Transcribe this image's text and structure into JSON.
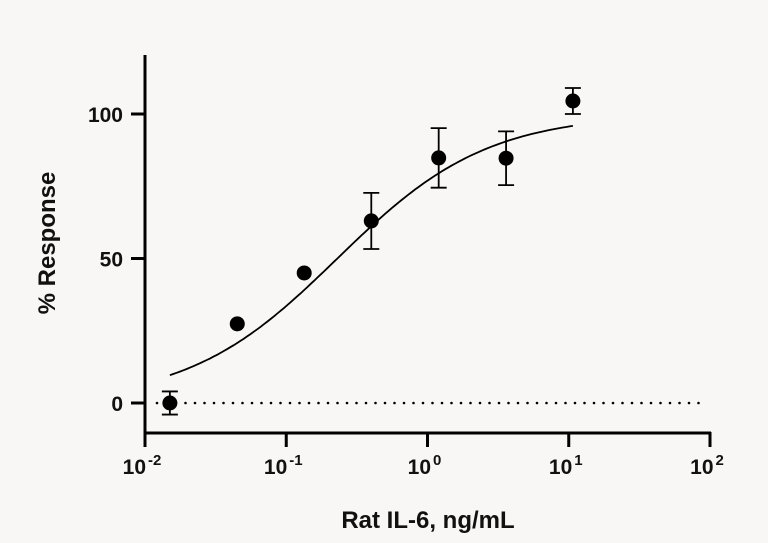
{
  "chart_data": {
    "type": "scatter",
    "title": "",
    "xlabel": "Rat IL-6, ng/mL",
    "ylabel": "% Response",
    "x_scale": "log",
    "xlim": [
      0.01,
      100
    ],
    "ylim": [
      -10,
      120
    ],
    "x_ticks": [
      {
        "base": "10",
        "exp": "-2",
        "value": 0.01
      },
      {
        "base": "10",
        "exp": "-1",
        "value": 0.1
      },
      {
        "base": "10",
        "exp": "0",
        "value": 1
      },
      {
        "base": "10",
        "exp": "1",
        "value": 10
      },
      {
        "base": "10",
        "exp": "2",
        "value": 100
      }
    ],
    "y_ticks": [
      {
        "label": "0",
        "value": 0
      },
      {
        "label": "50",
        "value": 50
      },
      {
        "label": "100",
        "value": 100
      }
    ],
    "grid": false,
    "baseline": {
      "y": 0,
      "style": "dotted"
    },
    "points": [
      {
        "x": 0.015,
        "y": 0,
        "err": 4
      },
      {
        "x": 0.045,
        "y": 27.4,
        "err": 0
      },
      {
        "x": 0.134,
        "y": 45,
        "err": 0
      },
      {
        "x": 0.4,
        "y": 63,
        "err": 9.7
      },
      {
        "x": 1.2,
        "y": 84.8,
        "err": 10.3
      },
      {
        "x": 3.6,
        "y": 84.7,
        "err": 9.3
      },
      {
        "x": 10.7,
        "y": 104.5,
        "err": 4.5
      }
    ],
    "fit": {
      "model": "4PL",
      "bottom": 0,
      "top": 100,
      "ec50": 0.23,
      "hill": 0.82
    },
    "colors": {
      "marks": "#000000",
      "background": "#f8f7f5"
    }
  }
}
